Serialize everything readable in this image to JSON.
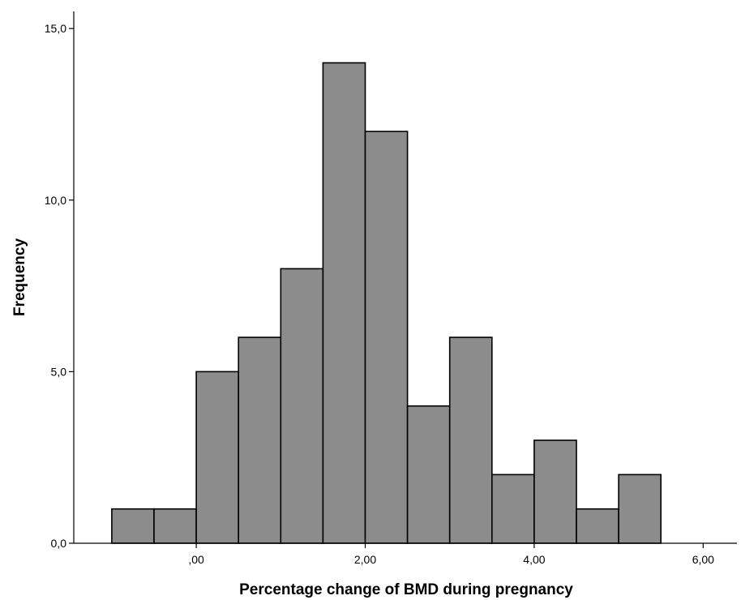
{
  "chart_data": {
    "type": "bar",
    "subtype": "histogram",
    "title": "",
    "xlabel": "Percentage change of BMD during pregnancy",
    "ylabel": "Frequency",
    "bin_width": 0.5,
    "bins": [
      {
        "x0": -1.0,
        "x1": -0.5,
        "count": 1
      },
      {
        "x0": -0.5,
        "x1": 0.0,
        "count": 1
      },
      {
        "x0": 0.0,
        "x1": 0.5,
        "count": 5
      },
      {
        "x0": 0.5,
        "x1": 1.0,
        "count": 6
      },
      {
        "x0": 1.0,
        "x1": 1.5,
        "count": 8
      },
      {
        "x0": 1.5,
        "x1": 2.0,
        "count": 14
      },
      {
        "x0": 2.0,
        "x1": 2.5,
        "count": 12
      },
      {
        "x0": 2.5,
        "x1": 3.0,
        "count": 4
      },
      {
        "x0": 3.0,
        "x1": 3.5,
        "count": 6
      },
      {
        "x0": 3.5,
        "x1": 4.0,
        "count": 2
      },
      {
        "x0": 4.0,
        "x1": 4.5,
        "count": 3
      },
      {
        "x0": 4.5,
        "x1": 5.0,
        "count": 1
      },
      {
        "x0": 5.0,
        "x1": 5.5,
        "count": 2
      }
    ],
    "xlim": [
      -1.45,
      6.4
    ],
    "ylim": [
      0,
      15.5
    ],
    "x_ticks": [
      {
        "value": 0,
        "label": ",00"
      },
      {
        "value": 2,
        "label": "2,00"
      },
      {
        "value": 4,
        "label": "4,00"
      },
      {
        "value": 6,
        "label": "6,00"
      }
    ],
    "y_ticks": [
      {
        "value": 0,
        "label": "0,0"
      },
      {
        "value": 5,
        "label": "5,0"
      },
      {
        "value": 10,
        "label": "10,0"
      },
      {
        "value": 15,
        "label": "15,0"
      }
    ],
    "grid": false,
    "legend": "none",
    "bar_color": "#8c8c8c",
    "edge_color": "#000000"
  }
}
